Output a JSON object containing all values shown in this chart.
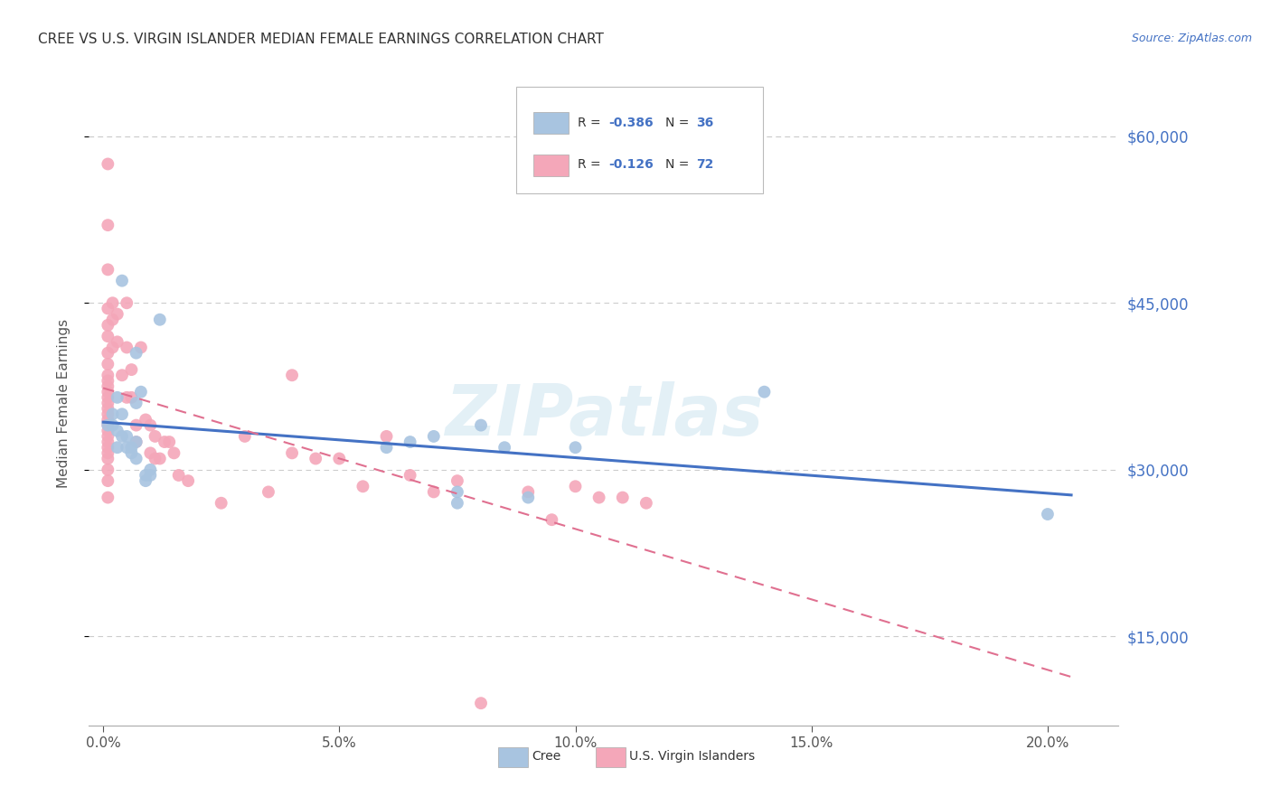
{
  "title": "CREE VS U.S. VIRGIN ISLANDER MEDIAN FEMALE EARNINGS CORRELATION CHART",
  "source": "Source: ZipAtlas.com",
  "xlabel_ticks": [
    "0.0%",
    "5.0%",
    "10.0%",
    "15.0%",
    "20.0%"
  ],
  "xlabel_values": [
    0.0,
    0.05,
    0.1,
    0.15,
    0.2
  ],
  "ylabel": "Median Female Earnings",
  "ylabel_ticks": [
    15000,
    30000,
    45000,
    60000
  ],
  "ylabel_labels": [
    "$15,000",
    "$30,000",
    "$45,000",
    "$60,000"
  ],
  "ylim": [
    7000,
    65000
  ],
  "xlim": [
    -0.003,
    0.215
  ],
  "cree_color": "#a8c4e0",
  "vi_color": "#f4a7b9",
  "trendline_cree_color": "#4472c4",
  "trendline_vi_color": "#e07090",
  "watermark": "ZIPatlas",
  "cree_points": [
    [
      0.001,
      34000
    ],
    [
      0.002,
      35000
    ],
    [
      0.002,
      34000
    ],
    [
      0.003,
      36500
    ],
    [
      0.003,
      33500
    ],
    [
      0.003,
      32000
    ],
    [
      0.004,
      47000
    ],
    [
      0.004,
      35000
    ],
    [
      0.004,
      33000
    ],
    [
      0.005,
      33000
    ],
    [
      0.005,
      32000
    ],
    [
      0.006,
      32000
    ],
    [
      0.006,
      31500
    ],
    [
      0.007,
      40500
    ],
    [
      0.007,
      36000
    ],
    [
      0.007,
      32500
    ],
    [
      0.007,
      31000
    ],
    [
      0.008,
      37000
    ],
    [
      0.009,
      29500
    ],
    [
      0.009,
      29000
    ],
    [
      0.01,
      30000
    ],
    [
      0.01,
      29500
    ],
    [
      0.012,
      43500
    ],
    [
      0.06,
      32000
    ],
    [
      0.065,
      32500
    ],
    [
      0.07,
      33000
    ],
    [
      0.075,
      28000
    ],
    [
      0.075,
      27000
    ],
    [
      0.08,
      34000
    ],
    [
      0.085,
      32000
    ],
    [
      0.09,
      27500
    ],
    [
      0.1,
      32000
    ],
    [
      0.14,
      37000
    ],
    [
      0.2,
      26000
    ]
  ],
  "vi_points": [
    [
      0.001,
      57500
    ],
    [
      0.001,
      52000
    ],
    [
      0.001,
      48000
    ],
    [
      0.001,
      44500
    ],
    [
      0.001,
      43000
    ],
    [
      0.001,
      42000
    ],
    [
      0.001,
      40500
    ],
    [
      0.001,
      39500
    ],
    [
      0.001,
      38500
    ],
    [
      0.001,
      38000
    ],
    [
      0.001,
      37500
    ],
    [
      0.001,
      37000
    ],
    [
      0.001,
      36500
    ],
    [
      0.001,
      36000
    ],
    [
      0.001,
      35500
    ],
    [
      0.001,
      35000
    ],
    [
      0.001,
      34500
    ],
    [
      0.001,
      34000
    ],
    [
      0.001,
      33500
    ],
    [
      0.001,
      33000
    ],
    [
      0.001,
      32500
    ],
    [
      0.001,
      32000
    ],
    [
      0.001,
      31500
    ],
    [
      0.001,
      31000
    ],
    [
      0.001,
      30000
    ],
    [
      0.001,
      29000
    ],
    [
      0.001,
      27500
    ],
    [
      0.002,
      45000
    ],
    [
      0.002,
      43500
    ],
    [
      0.002,
      41000
    ],
    [
      0.003,
      44000
    ],
    [
      0.003,
      41500
    ],
    [
      0.004,
      38500
    ],
    [
      0.005,
      45000
    ],
    [
      0.005,
      41000
    ],
    [
      0.005,
      36500
    ],
    [
      0.006,
      39000
    ],
    [
      0.006,
      36500
    ],
    [
      0.007,
      34000
    ],
    [
      0.007,
      32500
    ],
    [
      0.008,
      41000
    ],
    [
      0.009,
      34500
    ],
    [
      0.01,
      34000
    ],
    [
      0.01,
      31500
    ],
    [
      0.011,
      33000
    ],
    [
      0.011,
      31000
    ],
    [
      0.012,
      31000
    ],
    [
      0.013,
      32500
    ],
    [
      0.014,
      32500
    ],
    [
      0.015,
      31500
    ],
    [
      0.016,
      29500
    ],
    [
      0.018,
      29000
    ],
    [
      0.025,
      27000
    ],
    [
      0.03,
      33000
    ],
    [
      0.035,
      28000
    ],
    [
      0.04,
      38500
    ],
    [
      0.04,
      31500
    ],
    [
      0.045,
      31000
    ],
    [
      0.05,
      31000
    ],
    [
      0.055,
      28500
    ],
    [
      0.06,
      33000
    ],
    [
      0.065,
      29500
    ],
    [
      0.07,
      28000
    ],
    [
      0.075,
      29000
    ],
    [
      0.08,
      9000
    ],
    [
      0.09,
      28000
    ],
    [
      0.095,
      25500
    ],
    [
      0.1,
      28500
    ],
    [
      0.105,
      27500
    ],
    [
      0.11,
      27500
    ],
    [
      0.115,
      27000
    ]
  ]
}
